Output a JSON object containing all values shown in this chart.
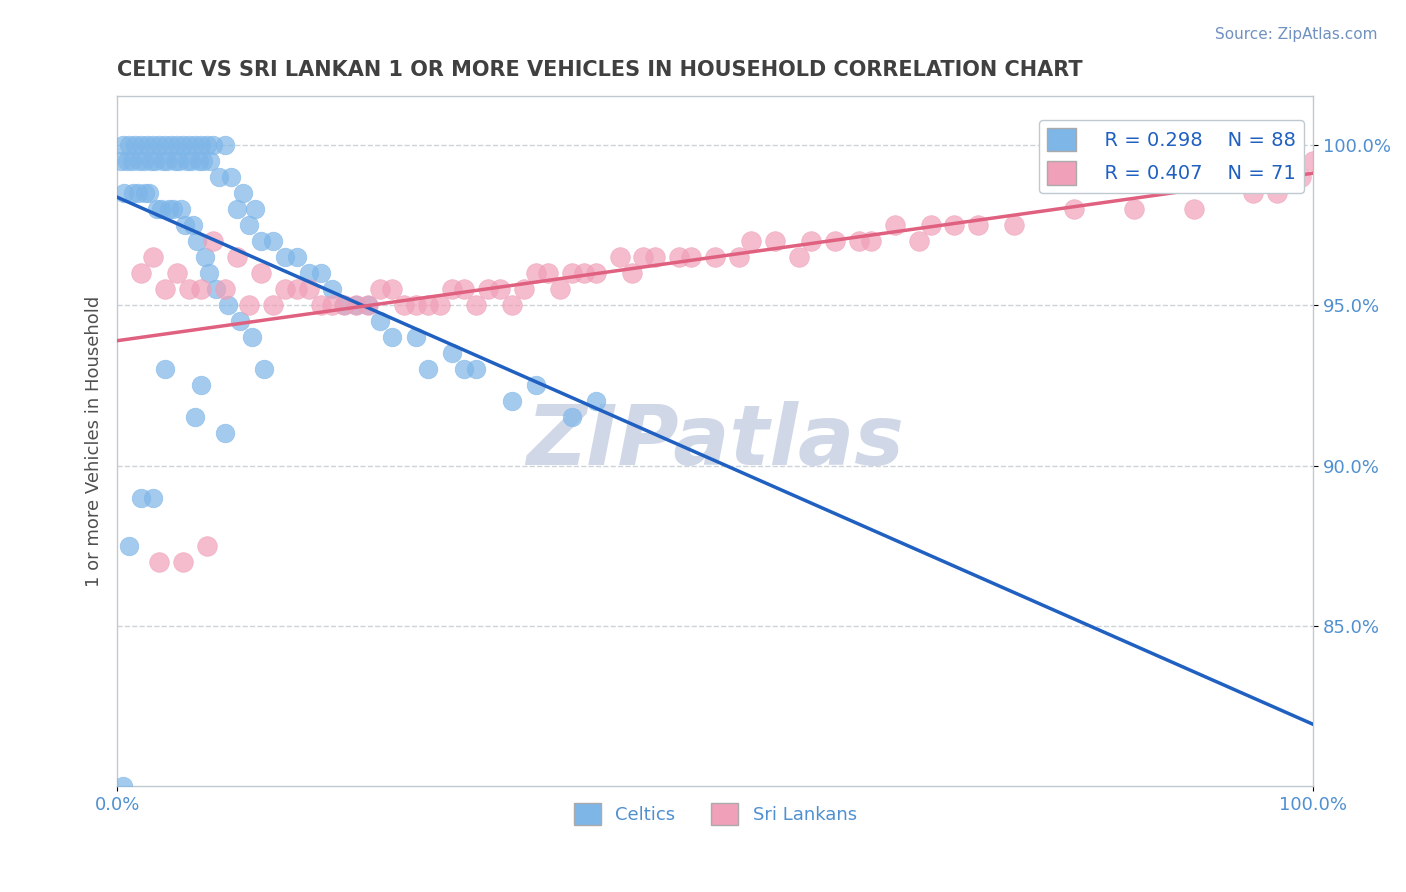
{
  "title": "CELTIC VS SRI LANKAN 1 OR MORE VEHICLES IN HOUSEHOLD CORRELATION CHART",
  "source": "Source: ZipAtlas.com",
  "xlabel_ticks": [
    "0.0%",
    "100.0%"
  ],
  "ylabel_ticks": [
    "85.0%",
    "90.0%",
    "95.0%",
    "100.0%"
  ],
  "ylabel_label": "1 or more Vehicles in Household",
  "legend_labels": [
    "Celtics",
    "Sri Lankans"
  ],
  "legend_r": [
    "R = 0.298",
    "R = 0.407"
  ],
  "legend_n": [
    "N = 88",
    "N = 71"
  ],
  "blue_color": "#7EB6E8",
  "pink_color": "#F0A0B8",
  "blue_line_color": "#2060C0",
  "pink_line_color": "#E06080",
  "title_color": "#404040",
  "source_color": "#7090C0",
  "legend_text_color": "#2060C0",
  "watermark_color": "#D0D8E8",
  "tick_label_color": "#5090D0",
  "axis_color": "#C0C8D0",
  "blue_scatter_x": [
    0.5,
    1.0,
    1.5,
    2.0,
    2.5,
    3.0,
    3.5,
    4.0,
    4.5,
    5.0,
    5.5,
    6.0,
    6.5,
    7.0,
    7.5,
    8.0,
    9.0,
    10.0,
    11.0,
    12.0,
    14.0,
    16.0,
    18.0,
    20.0,
    22.0,
    25.0,
    28.0,
    30.0,
    35.0,
    40.0,
    0.3,
    0.8,
    1.2,
    1.8,
    2.2,
    2.8,
    3.2,
    3.8,
    4.2,
    4.8,
    5.2,
    5.8,
    6.2,
    6.8,
    7.2,
    7.8,
    8.5,
    9.5,
    10.5,
    11.5,
    13.0,
    15.0,
    17.0,
    19.0,
    21.0,
    23.0,
    26.0,
    29.0,
    33.0,
    38.0,
    0.6,
    1.3,
    1.7,
    2.3,
    2.7,
    3.3,
    3.7,
    4.3,
    4.7,
    5.3,
    5.7,
    6.3,
    6.7,
    7.3,
    7.7,
    8.3,
    9.3,
    10.3,
    11.3,
    12.3,
    4.0,
    7.0,
    6.5,
    9.0,
    3.0,
    2.0,
    1.0,
    0.5
  ],
  "blue_scatter_y": [
    100.0,
    100.0,
    100.0,
    100.0,
    100.0,
    100.0,
    100.0,
    100.0,
    100.0,
    100.0,
    100.0,
    100.0,
    100.0,
    100.0,
    100.0,
    100.0,
    100.0,
    98.0,
    97.5,
    97.0,
    96.5,
    96.0,
    95.5,
    95.0,
    94.5,
    94.0,
    93.5,
    93.0,
    92.5,
    92.0,
    99.5,
    99.5,
    99.5,
    99.5,
    99.5,
    99.5,
    99.5,
    99.5,
    99.5,
    99.5,
    99.5,
    99.5,
    99.5,
    99.5,
    99.5,
    99.5,
    99.0,
    99.0,
    98.5,
    98.0,
    97.0,
    96.5,
    96.0,
    95.0,
    95.0,
    94.0,
    93.0,
    93.0,
    92.0,
    91.5,
    98.5,
    98.5,
    98.5,
    98.5,
    98.5,
    98.0,
    98.0,
    98.0,
    98.0,
    98.0,
    97.5,
    97.5,
    97.0,
    96.5,
    96.0,
    95.5,
    95.0,
    94.5,
    94.0,
    93.0,
    93.0,
    92.5,
    91.5,
    91.0,
    89.0,
    89.0,
    87.5,
    80.0
  ],
  "pink_scatter_x": [
    3.0,
    5.0,
    8.0,
    10.0,
    12.0,
    15.0,
    18.0,
    20.0,
    22.0,
    25.0,
    28.0,
    30.0,
    32.0,
    35.0,
    38.0,
    42.0,
    45.0,
    50.0,
    55.0,
    60.0,
    65.0,
    70.0,
    4.0,
    7.0,
    9.0,
    11.0,
    13.0,
    16.0,
    19.0,
    21.0,
    23.0,
    26.0,
    29.0,
    31.0,
    33.0,
    37.0,
    40.0,
    43.0,
    47.0,
    52.0,
    57.0,
    62.0,
    67.0,
    72.0,
    2.0,
    6.0,
    14.0,
    17.0,
    24.0,
    27.0,
    34.0,
    36.0,
    39.0,
    44.0,
    48.0,
    53.0,
    58.0,
    63.0,
    68.0,
    75.0,
    80.0,
    85.0,
    90.0,
    95.0,
    97.0,
    99.0,
    100.0,
    98.0,
    3.5,
    5.5,
    7.5
  ],
  "pink_scatter_y": [
    96.5,
    96.0,
    97.0,
    96.5,
    96.0,
    95.5,
    95.0,
    95.0,
    95.5,
    95.0,
    95.5,
    95.0,
    95.5,
    96.0,
    96.0,
    96.5,
    96.5,
    96.5,
    97.0,
    97.0,
    97.5,
    97.5,
    95.5,
    95.5,
    95.5,
    95.0,
    95.0,
    95.5,
    95.0,
    95.0,
    95.5,
    95.0,
    95.5,
    95.5,
    95.0,
    95.5,
    96.0,
    96.0,
    96.5,
    96.5,
    96.5,
    97.0,
    97.0,
    97.5,
    96.0,
    95.5,
    95.5,
    95.0,
    95.0,
    95.0,
    95.5,
    96.0,
    96.0,
    96.5,
    96.5,
    97.0,
    97.0,
    97.0,
    97.5,
    97.5,
    98.0,
    98.0,
    98.0,
    98.5,
    98.5,
    99.0,
    99.5,
    100.0,
    87.0,
    87.0,
    87.5
  ],
  "xmin": 0.0,
  "xmax": 100.0,
  "ymin": 80.0,
  "ymax": 101.5,
  "yticks": [
    85.0,
    90.0,
    95.0,
    100.0
  ],
  "xticks": [
    0.0,
    100.0
  ],
  "watermark_text": "ZIPatlas",
  "figwidth": 14.06,
  "figheight": 8.92,
  "dpi": 100
}
